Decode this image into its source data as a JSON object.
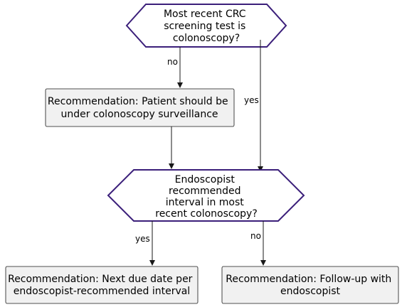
{
  "decision1": {
    "lines": [
      "Most recent CRC",
      "screening test is",
      "colonoscopy?"
    ]
  },
  "decision2": {
    "lines": [
      "Endoscopist",
      "recommended",
      "interval in most",
      "recent colonoscopy?"
    ]
  },
  "box_surveillance": {
    "lines": [
      "Recommendation: Patient should be",
      "under colonoscopy surveillance"
    ]
  },
  "box_next_due": {
    "lines": [
      "Recommendation: Next due date per",
      "endoscopist-recommended interval"
    ]
  },
  "box_follow_up": {
    "lines": [
      "Recommendation: Follow-up with",
      "endoscopist"
    ]
  },
  "edges": {
    "d1_no": "no",
    "d1_yes": "yes",
    "d2_yes": "yes",
    "d2_no": "no"
  },
  "colors": {
    "decision_stroke": "#3b1f7a",
    "box_fill": "#f1f1f1",
    "line": "#181818"
  }
}
